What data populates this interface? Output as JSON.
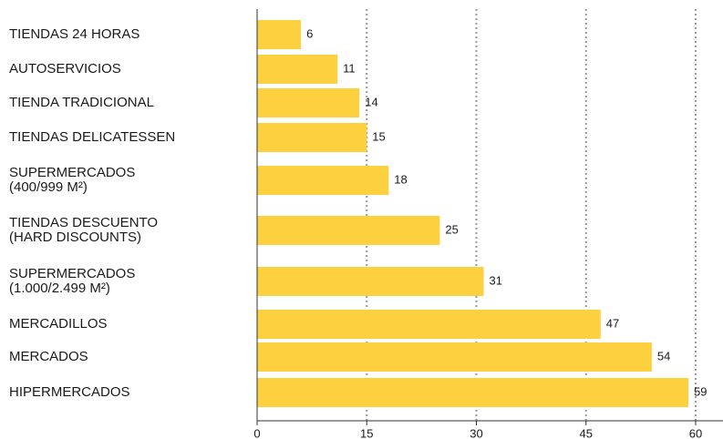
{
  "chart_data": {
    "type": "bar",
    "orientation": "horizontal",
    "categories": [
      "TIENDAS 24 HORAS",
      "AUTOSERVICIOS",
      "TIENDA TRADICIONAL",
      "TIENDAS DELICATESSEN",
      "SUPERMERCADOS\n(400/999 M²)",
      "TIENDAS DESCUENTO\n(HARD DISCOUNTS)",
      "SUPERMERCADOS\n(1.000/2.499 M²)",
      "MERCADILLOS",
      "MERCADOS",
      "HIPERMERCADOS"
    ],
    "values": [
      6,
      11,
      14,
      15,
      18,
      25,
      31,
      47,
      54,
      59
    ],
    "color": "#fdd03f",
    "xlim": [
      0,
      60
    ],
    "xticks": [
      0,
      15,
      30,
      45,
      60
    ],
    "grid": true
  }
}
